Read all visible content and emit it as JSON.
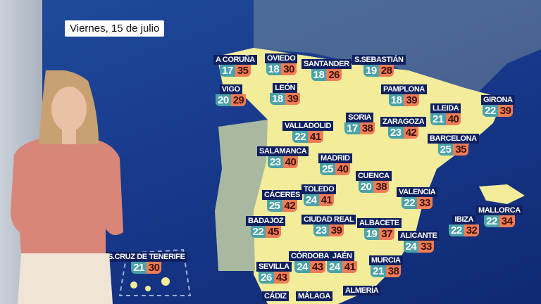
{
  "date_label": "Viernes, 15 de julio",
  "colors": {
    "sea": "#17378a",
    "land": "#f3ec9a",
    "portugal": "#a9b8a0",
    "min_temp": "#4aa3a8",
    "max_temp": "#f07c55",
    "label_bg": "#0f2060"
  },
  "cities": [
    {
      "name": "A CORUÑA",
      "min": "17",
      "max": "35"
    },
    {
      "name": "OVIEDO",
      "min": "18",
      "max": "30"
    },
    {
      "name": "SANTANDER",
      "min": "18",
      "max": "26"
    },
    {
      "name": "S.SEBASTIÁN",
      "min": "19",
      "max": "28"
    },
    {
      "name": "VIGO",
      "min": "20",
      "max": "29"
    },
    {
      "name": "LEÓN",
      "min": "18",
      "max": "39"
    },
    {
      "name": "PAMPLONA",
      "min": "18",
      "max": "39"
    },
    {
      "name": "GIRONA",
      "min": "22",
      "max": "39"
    },
    {
      "name": "SORIA",
      "min": "17",
      "max": "38"
    },
    {
      "name": "LLEIDA",
      "min": "21",
      "max": "40"
    },
    {
      "name": "VALLADOLID",
      "min": "22",
      "max": "41"
    },
    {
      "name": "ZARAGOZA",
      "min": "23",
      "max": "42"
    },
    {
      "name": "BARCELONA",
      "min": "25",
      "max": "35"
    },
    {
      "name": "SALAMANCA",
      "min": "23",
      "max": "40"
    },
    {
      "name": "MADRID",
      "min": "25",
      "max": "40"
    },
    {
      "name": "CUENCA",
      "min": "20",
      "max": "38"
    },
    {
      "name": "CÁCERES",
      "min": "25",
      "max": "42"
    },
    {
      "name": "TOLEDO",
      "min": "24",
      "max": "41"
    },
    {
      "name": "VALENCIA",
      "min": "22",
      "max": "33"
    },
    {
      "name": "BADAJOZ",
      "min": "22",
      "max": "45"
    },
    {
      "name": "CIUDAD REAL",
      "min": "23",
      "max": "39"
    },
    {
      "name": "ALBACETE",
      "min": "19",
      "max": "37"
    },
    {
      "name": "ALICANTE",
      "min": "24",
      "max": "33"
    },
    {
      "name": "IBIZA",
      "min": "22",
      "max": "32"
    },
    {
      "name": "MALLORCA",
      "min": "22",
      "max": "34"
    },
    {
      "name": "S.CRUZ DE TENERIFE",
      "min": "21",
      "max": "30"
    },
    {
      "name": "CÓRDOBA",
      "min": "24",
      "max": "43"
    },
    {
      "name": "JAÉN",
      "min": "24",
      "max": "41"
    },
    {
      "name": "MURCIA",
      "min": "21",
      "max": "38"
    },
    {
      "name": "SEVILLA",
      "min": "26",
      "max": "43"
    },
    {
      "name": "CÁDIZ"
    },
    {
      "name": "MÁLAGA"
    },
    {
      "name": "ALMERÍA"
    }
  ]
}
